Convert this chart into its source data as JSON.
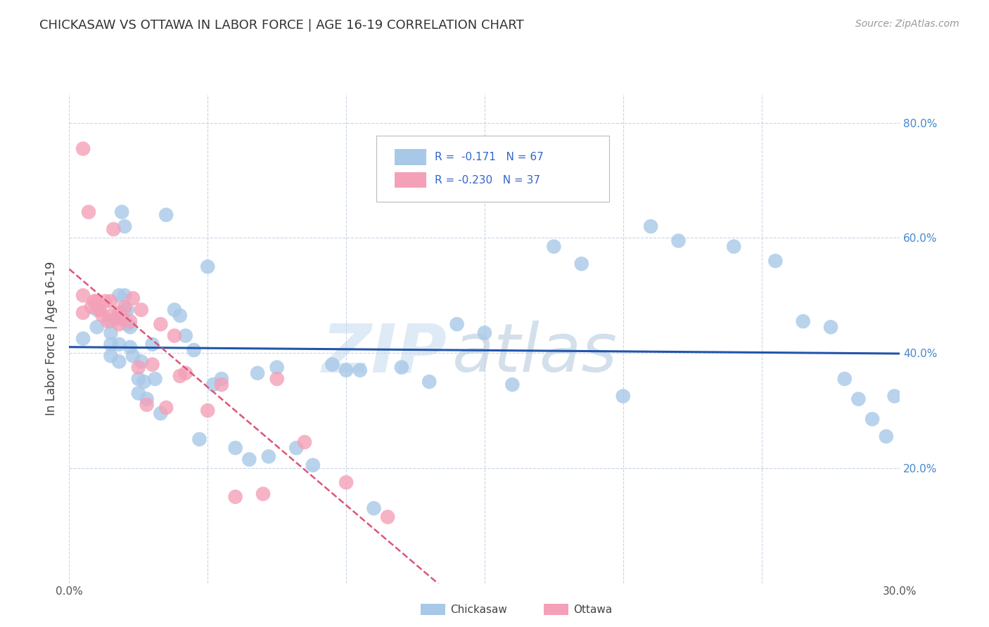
{
  "title": "CHICKASAW VS OTTAWA IN LABOR FORCE | AGE 16-19 CORRELATION CHART",
  "source": "Source: ZipAtlas.com",
  "ylabel": "In Labor Force | Age 16-19",
  "xlim": [
    0.0,
    0.3
  ],
  "ylim": [
    0.0,
    0.85
  ],
  "x_ticks": [
    0.0,
    0.05,
    0.1,
    0.15,
    0.2,
    0.25,
    0.3
  ],
  "y_ticks": [
    0.0,
    0.2,
    0.4,
    0.6,
    0.8
  ],
  "chickasaw_R": "-0.171",
  "chickasaw_N": "67",
  "ottawa_R": "-0.230",
  "ottawa_N": "37",
  "chickasaw_color": "#a8c8e8",
  "ottawa_color": "#f4a0b8",
  "chickasaw_line_color": "#2255aa",
  "ottawa_line_color": "#dd5577",
  "background_color": "#ffffff",
  "grid_color": "#c8d4e8",
  "chickasaw_x": [
    0.005,
    0.01,
    0.01,
    0.015,
    0.015,
    0.015,
    0.015,
    0.017,
    0.018,
    0.018,
    0.018,
    0.019,
    0.02,
    0.02,
    0.02,
    0.021,
    0.021,
    0.022,
    0.022,
    0.023,
    0.025,
    0.025,
    0.026,
    0.027,
    0.028,
    0.03,
    0.031,
    0.033,
    0.035,
    0.038,
    0.04,
    0.042,
    0.045,
    0.047,
    0.05,
    0.052,
    0.055,
    0.06,
    0.065,
    0.068,
    0.072,
    0.075,
    0.082,
    0.088,
    0.095,
    0.1,
    0.105,
    0.11,
    0.12,
    0.13,
    0.14,
    0.15,
    0.16,
    0.175,
    0.185,
    0.2,
    0.21,
    0.22,
    0.24,
    0.255,
    0.265,
    0.275,
    0.28,
    0.285,
    0.29,
    0.295,
    0.298
  ],
  "chickasaw_y": [
    0.425,
    0.445,
    0.475,
    0.455,
    0.435,
    0.415,
    0.395,
    0.46,
    0.5,
    0.415,
    0.385,
    0.645,
    0.62,
    0.475,
    0.5,
    0.475,
    0.45,
    0.445,
    0.41,
    0.395,
    0.355,
    0.33,
    0.385,
    0.35,
    0.32,
    0.415,
    0.355,
    0.295,
    0.64,
    0.475,
    0.465,
    0.43,
    0.405,
    0.25,
    0.55,
    0.345,
    0.355,
    0.235,
    0.215,
    0.365,
    0.22,
    0.375,
    0.235,
    0.205,
    0.38,
    0.37,
    0.37,
    0.13,
    0.375,
    0.35,
    0.45,
    0.435,
    0.345,
    0.585,
    0.555,
    0.325,
    0.62,
    0.595,
    0.585,
    0.56,
    0.455,
    0.445,
    0.355,
    0.32,
    0.285,
    0.255,
    0.325
  ],
  "ottawa_x": [
    0.005,
    0.005,
    0.005,
    0.007,
    0.008,
    0.009,
    0.01,
    0.011,
    0.012,
    0.013,
    0.014,
    0.015,
    0.015,
    0.016,
    0.018,
    0.018,
    0.019,
    0.02,
    0.022,
    0.023,
    0.025,
    0.026,
    0.028,
    0.03,
    0.033,
    0.035,
    0.038,
    0.04,
    0.042,
    0.05,
    0.055,
    0.06,
    0.07,
    0.075,
    0.085,
    0.1,
    0.115
  ],
  "ottawa_y": [
    0.755,
    0.5,
    0.47,
    0.645,
    0.48,
    0.49,
    0.49,
    0.475,
    0.465,
    0.49,
    0.455,
    0.49,
    0.465,
    0.615,
    0.47,
    0.45,
    0.46,
    0.48,
    0.455,
    0.495,
    0.375,
    0.475,
    0.31,
    0.38,
    0.45,
    0.305,
    0.43,
    0.36,
    0.365,
    0.3,
    0.345,
    0.15,
    0.155,
    0.355,
    0.245,
    0.175,
    0.115
  ]
}
